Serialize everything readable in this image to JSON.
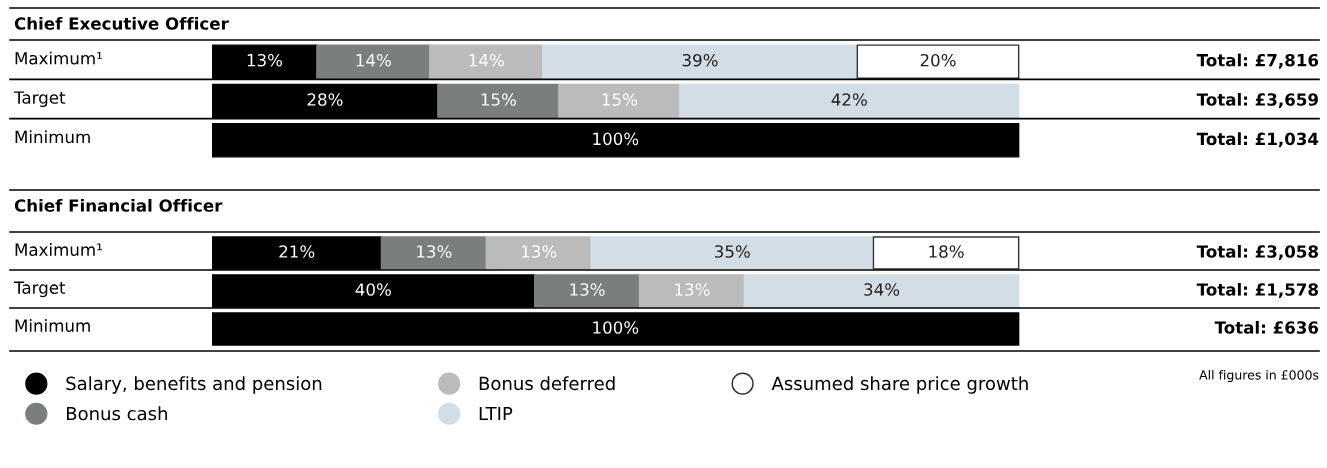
{
  "chart_data": [
    {
      "type": "bar",
      "title": "Chief Executive Officer",
      "orientation": "horizontal",
      "stacked": true,
      "categories": [
        "Maximum¹",
        "Target",
        "Minimum"
      ],
      "series": [
        {
          "name": "Salary, benefits and pension",
          "color": "#000000",
          "values": [
            13,
            28,
            100
          ],
          "value_labels": [
            "13%",
            "28%",
            "100%"
          ]
        },
        {
          "name": "Bonus cash",
          "color": "#7b7f7c",
          "values": [
            14,
            15,
            null
          ],
          "value_labels": [
            "14%",
            "15%",
            null
          ]
        },
        {
          "name": "Bonus deferred",
          "color": "#bbbbbb",
          "values": [
            14,
            15,
            null
          ],
          "value_labels": [
            "14%",
            "15%",
            null
          ]
        },
        {
          "name": "LTIP",
          "color": "#d3dde5",
          "values": [
            39,
            42,
            null
          ],
          "value_labels": [
            "39%",
            "42%",
            null
          ]
        },
        {
          "name": "Assumed share price growth",
          "color": "#ffffff",
          "values": [
            20,
            null,
            null
          ],
          "value_labels": [
            "20%",
            null,
            null
          ]
        }
      ],
      "annotations": [
        "Total: £7,816",
        "Total: £3,659",
        "Total: £1,034"
      ],
      "legend": "bottom"
    },
    {
      "type": "bar",
      "title": "Chief Financial Officer",
      "orientation": "horizontal",
      "stacked": true,
      "categories": [
        "Maximum¹",
        "Target",
        "Minimum"
      ],
      "series": [
        {
          "color": "#000000",
          "values": [
            21,
            40,
            100
          ],
          "value_labels": [
            "21%",
            "40%",
            "100%"
          ]
        },
        {
          "color": "#7b7f7c",
          "values": [
            13,
            13,
            null
          ],
          "value_labels": [
            "13%",
            "13%",
            null
          ]
        },
        {
          "color": "#bbbbbb",
          "values": [
            13,
            13,
            null
          ],
          "value_labels": [
            "13%",
            "13%",
            null
          ]
        },
        {
          "color": "#d3dde5",
          "values": [
            35,
            34,
            null
          ],
          "value_labels": [
            "35%",
            "34%",
            null
          ]
        },
        {
          "color": "#ffffff",
          "values": [
            18,
            null,
            null
          ],
          "value_labels": [
            "18%",
            null,
            null
          ]
        }
      ],
      "annotations": [
        "Total: £3,058",
        "Total: £1,578",
        "Total: £636",
        "All figures in £000s"
      ]
    }
  ]
}
